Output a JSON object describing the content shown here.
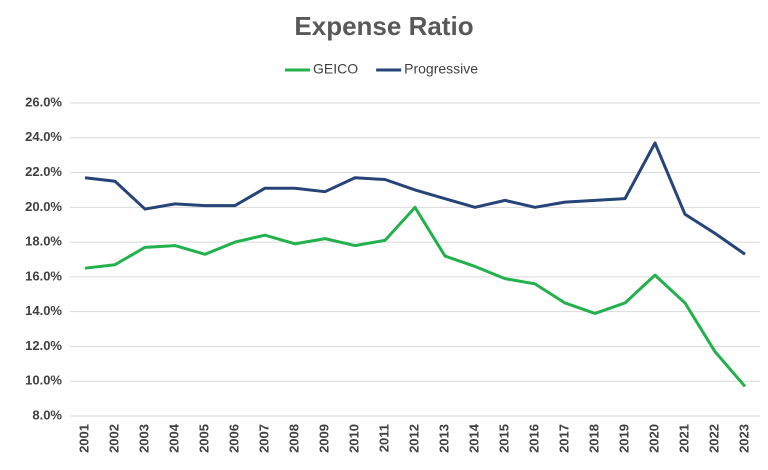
{
  "chart_data": {
    "type": "line",
    "title": "Expense Ratio",
    "categories": [
      "2001",
      "2002",
      "2003",
      "2004",
      "2005",
      "2006",
      "2007",
      "2008",
      "2009",
      "2010",
      "2011",
      "2012",
      "2013",
      "2014",
      "2015",
      "2016",
      "2017",
      "2018",
      "2019",
      "2020",
      "2021",
      "2022",
      "2023"
    ],
    "series": [
      {
        "name": "GEICO",
        "color": "#22b14c",
        "values": [
          16.5,
          16.7,
          17.7,
          17.8,
          17.3,
          18.0,
          18.4,
          17.9,
          18.2,
          17.8,
          18.1,
          20.0,
          17.2,
          16.6,
          15.9,
          15.6,
          14.5,
          13.9,
          14.5,
          16.1,
          14.5,
          11.7,
          9.7
        ]
      },
      {
        "name": "Progressive",
        "color": "#264478",
        "values": [
          21.7,
          21.5,
          19.9,
          20.2,
          20.1,
          20.1,
          21.1,
          21.1,
          20.9,
          21.7,
          21.6,
          21.0,
          20.5,
          20.0,
          20.4,
          20.0,
          20.3,
          20.4,
          20.5,
          23.7,
          19.6,
          18.5,
          17.3
        ]
      }
    ],
    "ylim": [
      8,
      26
    ],
    "yticks": [
      {
        "value": 8,
        "label": "8.0%"
      },
      {
        "value": 10,
        "label": "10.0%"
      },
      {
        "value": 12,
        "label": "12.0%"
      },
      {
        "value": 14,
        "label": "14.0%"
      },
      {
        "value": 16,
        "label": "16.0%"
      },
      {
        "value": 18,
        "label": "18.0%"
      },
      {
        "value": 20,
        "label": "20.0%"
      },
      {
        "value": 22,
        "label": "22.0%"
      },
      {
        "value": 24,
        "label": "24.0%"
      },
      {
        "value": 26,
        "label": "26.0%"
      }
    ],
    "grid": true,
    "legend": "top"
  }
}
